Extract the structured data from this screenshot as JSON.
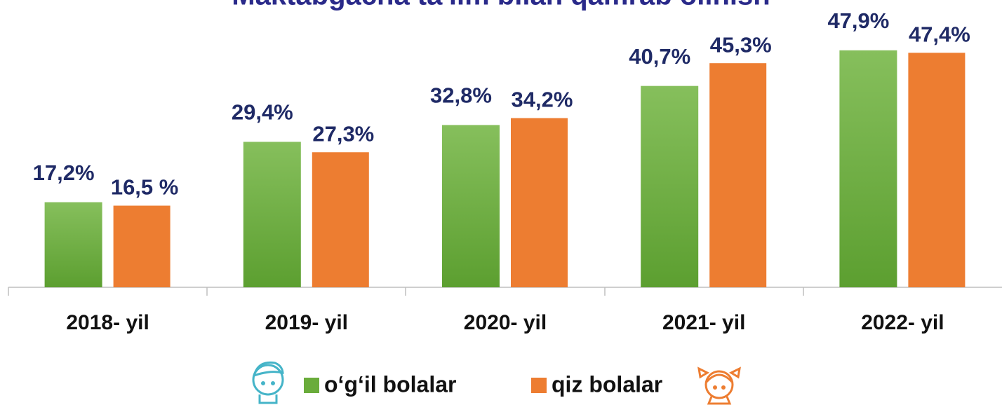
{
  "chart_data": {
    "type": "bar",
    "title": "Maktabgacha ta'lim bilan qamrab olinish",
    "categories": [
      "2018- yil",
      "2019- yil",
      "2020- yil",
      "2021- yil",
      "2022- yil"
    ],
    "series": [
      {
        "name": "o‘g‘il bolalar",
        "color": "#6aac3b",
        "values": [
          17.2,
          29.4,
          32.8,
          40.7,
          47.9
        ],
        "value_labels": [
          "17,2%",
          "29,4%",
          "32,8%",
          "40,7%",
          "47,9%"
        ]
      },
      {
        "name": "qiz bolalar",
        "color": "#ed7d31",
        "values": [
          16.5,
          27.3,
          34.2,
          45.3,
          47.4
        ],
        "value_labels": [
          "16,5 %",
          "27,3%",
          "34,2%",
          "45,3%",
          "47,4%"
        ]
      }
    ]
  }
}
